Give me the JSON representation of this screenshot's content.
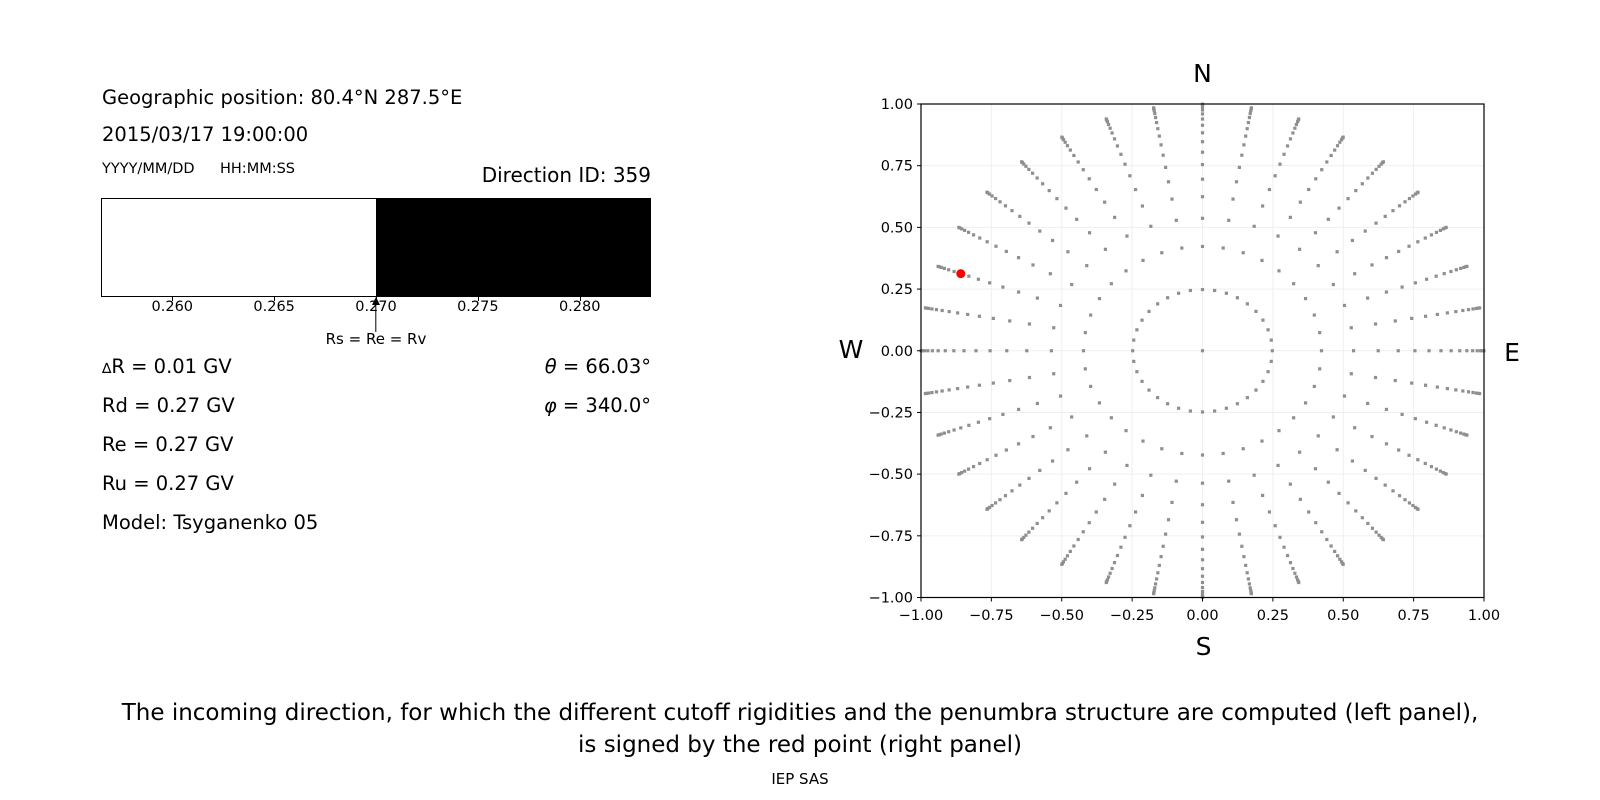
{
  "left_panel": {
    "geo_position": "Geographic position: 80.4°N 287.5°E",
    "datetime": "2015/03/17 19:00:00",
    "date_format": "YYYY/MM/DD",
    "time_format": "HH:MM:SS",
    "direction_id": "Direction ID: 359",
    "values": [
      {
        "symbol": "∆",
        "text": "R = 0.01 GV"
      },
      {
        "symbol": "",
        "text": "Rd = 0.27 GV"
      },
      {
        "symbol": "",
        "text": "Re = 0.27 GV"
      },
      {
        "symbol": "",
        "text": "Ru = 0.27 GV"
      },
      {
        "symbol": "",
        "text": "Model: Tsyganenko 05"
      }
    ],
    "angles": [
      {
        "symbol": "θ",
        "text": " = 66.03°"
      },
      {
        "symbol": "φ",
        "text": " = 340.0°"
      }
    ]
  },
  "chart_data": [
    {
      "type": "area",
      "name": "penumbra-strip",
      "xlim": [
        0.2565,
        0.2835
      ],
      "boundary": 0.27,
      "regions": [
        {
          "from": 0.2565,
          "to": 0.27,
          "state": "allowed",
          "color": "#ffffff"
        },
        {
          "from": 0.27,
          "to": 0.2835,
          "state": "forbidden",
          "color": "#000000"
        }
      ],
      "tick_values": [
        0.26,
        0.265,
        0.27,
        0.275,
        0.28
      ],
      "tick_labels": [
        "0.260",
        "0.265",
        "0.270",
        "0.275",
        "0.280"
      ],
      "arrow_label": "Rs = Re = Rv",
      "arrow_value": 0.27
    },
    {
      "type": "scatter",
      "name": "incoming-directions",
      "compass": {
        "top": "N",
        "bottom": "S",
        "left": "W",
        "right": "E"
      },
      "xlim": [
        -1,
        1
      ],
      "ylim": [
        -1,
        1
      ],
      "xtick_values": [
        -1,
        -0.75,
        -0.5,
        -0.25,
        0,
        0.25,
        0.5,
        0.75,
        1
      ],
      "xtick_labels": [
        "−1.00",
        "−0.75",
        "−0.50",
        "−0.25",
        "0.00",
        "0.25",
        "0.50",
        "0.75",
        "1.00"
      ],
      "ytick_values": [
        1,
        0.75,
        0.5,
        0.25,
        0,
        -0.25,
        -0.5,
        -0.75,
        -1
      ],
      "ytick_labels": [
        "1.00",
        "0.75",
        "0.50",
        "0.25",
        "0.00",
        "−0.25",
        "−0.50",
        "−0.75",
        "−1.00"
      ],
      "grid": {
        "color": "#efefef",
        "step": 0.25
      },
      "directions": {
        "n_azimuths": 36,
        "azimuth_step_deg": 10,
        "plot_angle_offset_deg": -180,
        "zenith_radii": [
          0.248,
          0.4227,
          0.5367,
          0.6242,
          0.6953,
          0.7546,
          0.8047,
          0.8472,
          0.8833,
          0.9138,
          0.9391,
          0.9596,
          0.9758,
          0.9877,
          0.9956,
          0.9995
        ],
        "center_dot": true,
        "dot_color": "#8f8f8f",
        "dot_size_px": 3.2
      },
      "red_point": {
        "azimuth_deg": 340,
        "zenith_deg": 66.03,
        "plot_angle_deg": 160,
        "radius": 0.9138,
        "x": -0.8587,
        "y": 0.3125,
        "color": "#ff0000",
        "radius_px": 4.5
      }
    }
  ],
  "caption": {
    "line1": "The incoming direction, for which the different cutoff rigidities and the penumbra structure are computed (left panel),",
    "line2": "is signed by the red point (right panel)",
    "credit": "IEP SAS"
  }
}
